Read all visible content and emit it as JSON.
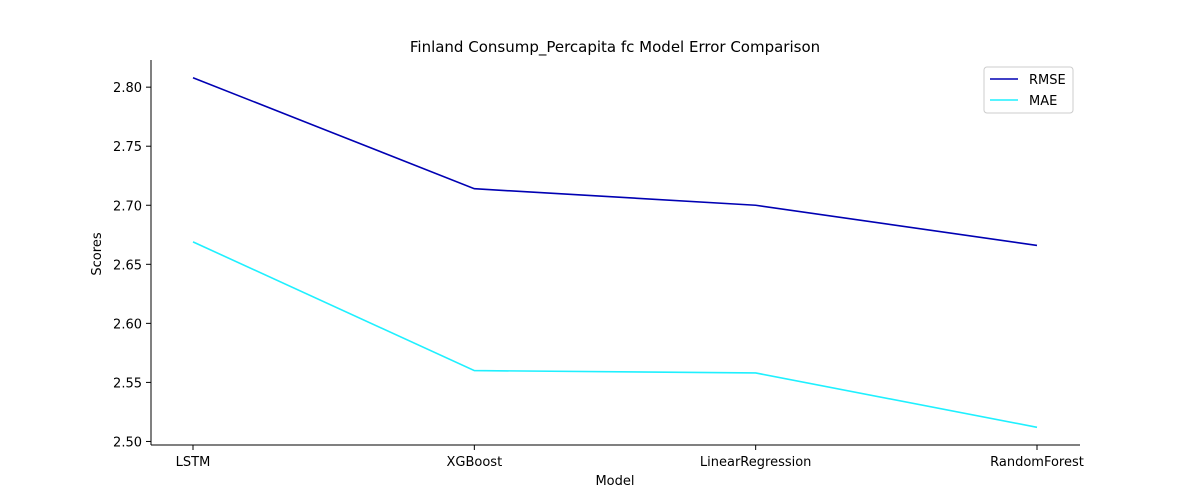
{
  "chart_data": {
    "type": "line",
    "title": "Finland Consump_Percapita fc Model Error Comparison",
    "xlabel": "Model",
    "ylabel": "Scores",
    "categories": [
      "LSTM",
      "XGBoost",
      "LinearRegression",
      "RandomForest"
    ],
    "series": [
      {
        "name": "RMSE",
        "color": "#0000b3",
        "values": [
          2.808,
          2.714,
          2.7,
          2.666
        ]
      },
      {
        "name": "MAE",
        "color": "#1ff0ff",
        "values": [
          2.669,
          2.56,
          2.558,
          2.512
        ]
      }
    ],
    "yticks": [
      "2.50",
      "2.55",
      "2.60",
      "2.65",
      "2.70",
      "2.75",
      "2.80"
    ],
    "ylim": [
      2.497,
      2.823
    ],
    "grid": false,
    "legend": "top-right"
  }
}
